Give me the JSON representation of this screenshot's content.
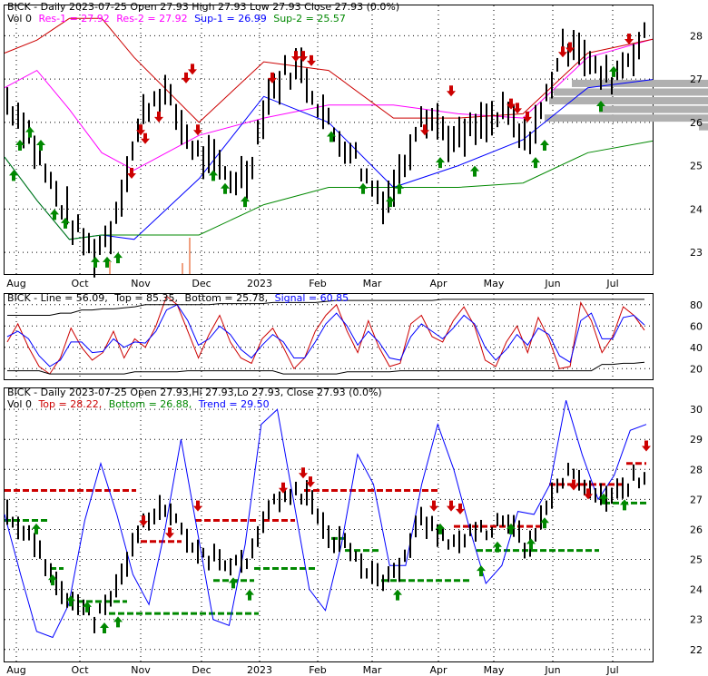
{
  "chart_data": [
    {
      "type": "candlestick",
      "panel": "price",
      "legend": [
        {
          "text": "BICK - Daily 2023-07-25 Open 27.93  High 27.93  Low 27.93  Close 27.93 (0.0%)",
          "color": "#000000"
        },
        {
          "text": "Vol 0",
          "color": "#000000"
        },
        {
          "text": "Res-1 = 27.92",
          "color": "#ff00ff"
        },
        {
          "text": "Res-2 = 27.92",
          "color": "#ff00ff"
        },
        {
          "text": "Sup-1 = 26.99",
          "color": "#0000ff"
        },
        {
          "text": "Sup-2 = 25.57",
          "color": "#008800"
        }
      ],
      "y_ticks": [
        "28",
        "27",
        "26",
        "25",
        "24",
        "23"
      ],
      "ylim": [
        22.5,
        28.7
      ],
      "series": [
        {
          "name": "Res-1",
          "color": "#ff00ff",
          "x": [
            0,
            0.05,
            0.1,
            0.15,
            0.2,
            0.3,
            0.4,
            0.5,
            0.6,
            0.7,
            0.8,
            0.9,
            1.0
          ],
          "values": [
            26.8,
            27.2,
            26.3,
            25.3,
            24.9,
            25.7,
            26.1,
            26.4,
            26.4,
            26.2,
            26.1,
            27.5,
            27.92
          ]
        },
        {
          "name": "Res-2",
          "color": "#cc0000",
          "x": [
            0,
            0.05,
            0.1,
            0.15,
            0.2,
            0.3,
            0.4,
            0.5,
            0.6,
            0.7,
            0.8,
            0.9,
            1.0
          ],
          "values": [
            27.6,
            27.9,
            28.4,
            28.4,
            27.5,
            26.0,
            27.4,
            27.2,
            26.1,
            26.1,
            26.2,
            27.6,
            27.92
          ]
        },
        {
          "name": "Sup-1",
          "color": "#0000ff",
          "x": [
            0,
            0.05,
            0.1,
            0.15,
            0.2,
            0.3,
            0.4,
            0.5,
            0.6,
            0.7,
            0.8,
            0.9,
            1.0
          ],
          "values": [
            25.2,
            24.2,
            23.3,
            23.4,
            23.3,
            24.7,
            26.6,
            26.0,
            24.5,
            25.0,
            25.6,
            26.8,
            26.99
          ]
        },
        {
          "name": "Sup-2",
          "color": "#008800",
          "x": [
            0,
            0.05,
            0.1,
            0.15,
            0.2,
            0.3,
            0.4,
            0.5,
            0.6,
            0.7,
            0.8,
            0.9,
            1.0
          ],
          "values": [
            25.2,
            24.2,
            23.3,
            23.4,
            23.4,
            23.4,
            24.1,
            24.5,
            24.5,
            24.5,
            24.6,
            25.3,
            25.57
          ]
        }
      ]
    },
    {
      "type": "line",
      "panel": "oscillator",
      "legend": [
        {
          "text": "BICK - Line = 56.09,",
          "color": "#000000"
        },
        {
          "text": "Top = 85.35,",
          "color": "#000000"
        },
        {
          "text": "Bottom = 25.78,",
          "color": "#000000"
        },
        {
          "text": "Signal = 60.85",
          "color": "#0000ff"
        }
      ],
      "y_ticks": [
        "80",
        "60",
        "40",
        "20"
      ],
      "ylim": [
        10,
        90
      ],
      "series": [
        {
          "name": "Line",
          "color": "#cc0000",
          "values": [
            45,
            62,
            40,
            22,
            15,
            30,
            58,
            40,
            28,
            35,
            55,
            30,
            48,
            40,
            60,
            88,
            80,
            55,
            30,
            52,
            70,
            45,
            30,
            25,
            48,
            58,
            40,
            20,
            30,
            55,
            70,
            80,
            55,
            35,
            65,
            40,
            22,
            25,
            62,
            70,
            50,
            45,
            65,
            78,
            60,
            28,
            22,
            45,
            60,
            35,
            68,
            48,
            20,
            22,
            82,
            65,
            35,
            50,
            78,
            70,
            56
          ]
        },
        {
          "name": "Signal",
          "color": "#0000ff",
          "values": [
            50,
            55,
            48,
            32,
            22,
            28,
            45,
            45,
            35,
            36,
            48,
            40,
            45,
            44,
            55,
            75,
            80,
            65,
            42,
            48,
            60,
            52,
            38,
            30,
            42,
            52,
            45,
            30,
            30,
            45,
            62,
            72,
            60,
            42,
            55,
            45,
            30,
            28,
            50,
            62,
            55,
            48,
            58,
            70,
            62,
            40,
            28,
            38,
            52,
            42,
            58,
            52,
            32,
            26,
            65,
            72,
            48,
            48,
            68,
            70,
            61
          ]
        },
        {
          "name": "Top",
          "color": "#000000",
          "values": [
            70,
            70,
            70,
            70,
            70,
            72,
            72,
            75,
            75,
            76,
            76,
            77,
            78,
            80,
            80,
            80,
            80,
            80,
            80,
            80,
            81,
            81,
            81,
            81,
            81,
            82,
            82,
            82,
            82,
            82,
            83,
            84,
            84,
            84,
            84,
            84,
            84,
            84,
            84,
            84,
            84,
            85,
            85,
            85,
            85,
            85,
            85,
            85,
            85,
            85,
            85,
            85,
            85,
            85,
            85,
            85,
            85,
            85,
            85,
            85,
            85
          ]
        },
        {
          "name": "Bottom",
          "color": "#000000",
          "values": [
            18,
            18,
            18,
            18,
            15,
            15,
            15,
            15,
            15,
            15,
            15,
            15,
            17,
            17,
            17,
            17,
            17,
            18,
            18,
            18,
            18,
            18,
            18,
            18,
            18,
            18,
            15,
            15,
            15,
            15,
            15,
            15,
            17,
            17,
            17,
            17,
            17,
            18,
            18,
            18,
            18,
            18,
            18,
            18,
            18,
            18,
            18,
            18,
            18,
            18,
            18,
            18,
            18,
            18,
            18,
            18,
            24,
            24,
            25,
            25,
            26
          ]
        }
      ]
    },
    {
      "type": "candlestick",
      "panel": "trend",
      "legend": [
        {
          "text": "BICK - Daily 2023-07-25 Open 27.93,Hi 27.93,Lo 27.93, Close 27.93 (0.0%)",
          "color": "#000000"
        },
        {
          "text": "Vol 0",
          "color": "#000000"
        },
        {
          "text": "Top = 28.22,",
          "color": "#cc0000"
        },
        {
          "text": "Bottom = 26.88,",
          "color": "#008800"
        },
        {
          "text": "Trend = 29.50",
          "color": "#0000ff"
        }
      ],
      "y_ticks": [
        "30",
        "29",
        "28",
        "27",
        "26",
        "25",
        "24",
        "23",
        "22"
      ],
      "ylim": [
        21.6,
        30.7
      ],
      "series": [
        {
          "name": "Trend",
          "color": "#0000ff",
          "values": [
            26.5,
            24.5,
            22.6,
            22.4,
            23.5,
            26.3,
            28.2,
            26.5,
            24.5,
            23.5,
            26.0,
            29.0,
            26.0,
            23.0,
            22.8,
            25.5,
            29.5,
            30.0,
            27.0,
            24.0,
            23.3,
            25.5,
            28.5,
            27.5,
            24.8,
            24.8,
            27.5,
            29.5,
            28.0,
            26.0,
            24.2,
            24.8,
            26.6,
            26.5,
            27.5,
            30.3,
            28.5,
            27.0,
            27.8,
            29.3,
            29.5
          ]
        }
      ]
    }
  ],
  "x_labels": [
    "Aug",
    "Oct",
    "Nov",
    "Dec",
    "2023",
    "Feb",
    "Mar",
    "Apr",
    "May",
    "Jun",
    "Jul"
  ],
  "colors": {
    "up": "#008800",
    "down": "#cc0000",
    "signal": "#0000ff",
    "volume_profile": "#b0b0b0",
    "grid": "#000000"
  }
}
